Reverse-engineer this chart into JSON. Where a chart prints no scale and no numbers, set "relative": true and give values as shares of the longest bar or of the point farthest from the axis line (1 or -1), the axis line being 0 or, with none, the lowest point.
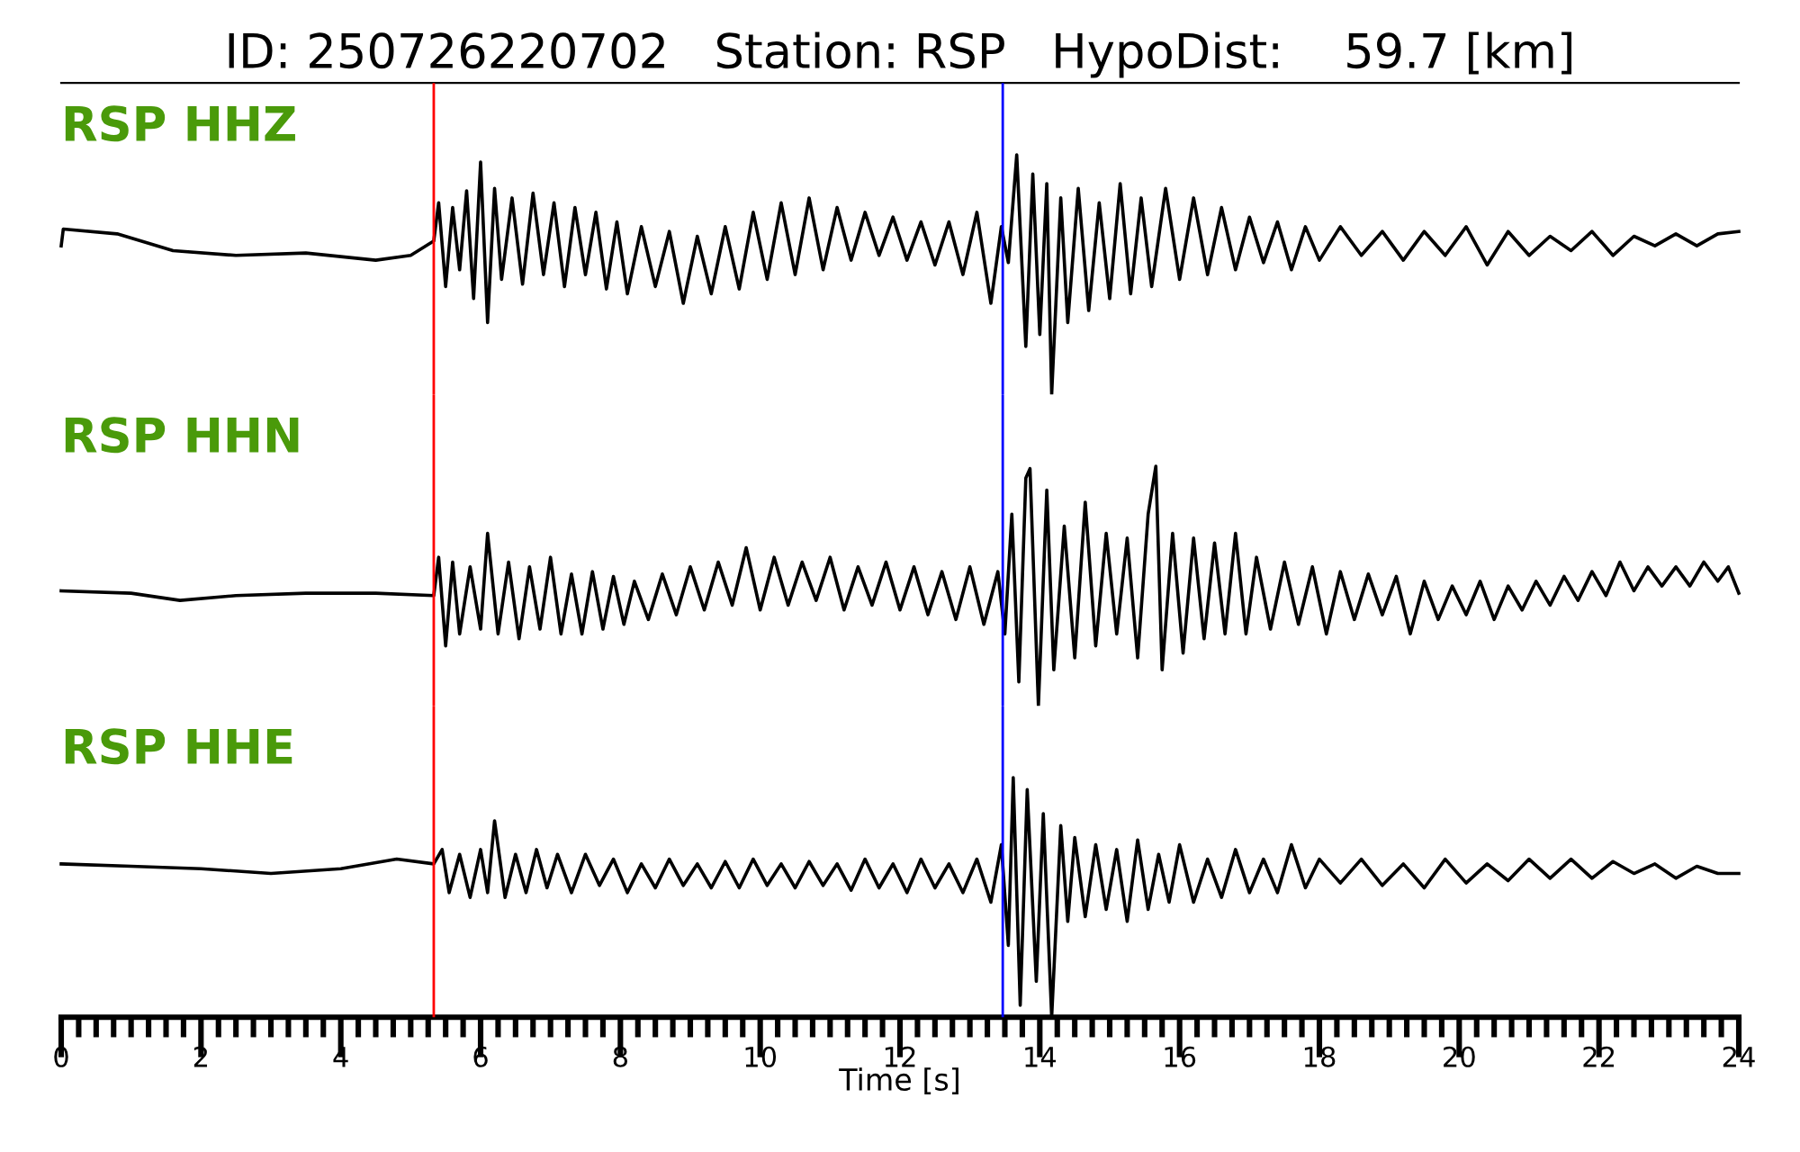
{
  "chart_data": [
    {
      "type": "line",
      "title": "ID: 250726220702   Station: RSP   HypoDist:    59.7 [km]",
      "annotations": [
        "RSP HHZ"
      ],
      "relative": true,
      "tick_labels": false,
      "xlim": [
        0,
        24
      ],
      "x": [
        0,
        0.03,
        0.8,
        1.6,
        2.5,
        3.5,
        4.5,
        5.0,
        5.33,
        5.4,
        5.5,
        5.6,
        5.7,
        5.8,
        5.9,
        6.0,
        6.1,
        6.2,
        6.3,
        6.45,
        6.6,
        6.75,
        6.9,
        7.05,
        7.2,
        7.35,
        7.5,
        7.65,
        7.8,
        7.95,
        8.1,
        8.3,
        8.5,
        8.7,
        8.9,
        9.1,
        9.3,
        9.5,
        9.7,
        9.9,
        10.1,
        10.3,
        10.5,
        10.7,
        10.9,
        11.1,
        11.3,
        11.5,
        11.7,
        11.9,
        12.1,
        12.3,
        12.5,
        12.7,
        12.9,
        13.1,
        13.3,
        13.45,
        13.55,
        13.67,
        13.8,
        13.9,
        14.0,
        14.1,
        14.17,
        14.3,
        14.4,
        14.55,
        14.7,
        14.85,
        15.0,
        15.15,
        15.3,
        15.45,
        15.6,
        15.8,
        16.0,
        16.2,
        16.4,
        16.6,
        16.8,
        17.0,
        17.2,
        17.4,
        17.6,
        17.8,
        18.0,
        18.3,
        18.6,
        18.9,
        19.2,
        19.5,
        19.8,
        20.1,
        20.4,
        20.7,
        21.0,
        21.3,
        21.6,
        21.9,
        22.2,
        22.5,
        22.8,
        23.1,
        23.4,
        23.7,
        24.0
      ],
      "series": [
        {
          "color": "#000000",
          "values": [
            0.62,
            0.69,
            0.67,
            0.6,
            0.58,
            0.59,
            0.56,
            0.58,
            0.64,
            0.8,
            0.45,
            0.78,
            0.52,
            0.85,
            0.4,
            0.97,
            0.3,
            0.86,
            0.48,
            0.82,
            0.46,
            0.84,
            0.5,
            0.8,
            0.45,
            0.78,
            0.5,
            0.76,
            0.44,
            0.72,
            0.42,
            0.7,
            0.45,
            0.68,
            0.38,
            0.66,
            0.42,
            0.7,
            0.44,
            0.76,
            0.48,
            0.8,
            0.5,
            0.82,
            0.52,
            0.78,
            0.56,
            0.76,
            0.58,
            0.74,
            0.56,
            0.72,
            0.54,
            0.72,
            0.5,
            0.76,
            0.38,
            0.7,
            0.55,
            1.0,
            0.2,
            0.92,
            0.25,
            0.88,
            0.0,
            0.82,
            0.3,
            0.86,
            0.35,
            0.8,
            0.4,
            0.88,
            0.42,
            0.82,
            0.45,
            0.86,
            0.48,
            0.82,
            0.5,
            0.78,
            0.52,
            0.74,
            0.55,
            0.72,
            0.52,
            0.7,
            0.56,
            0.7,
            0.58,
            0.68,
            0.56,
            0.68,
            0.58,
            0.7,
            0.54,
            0.68,
            0.58,
            0.66,
            0.6,
            0.68,
            0.58,
            0.66,
            0.62,
            0.67,
            0.62,
            0.67,
            0.68
          ]
        }
      ],
      "ref_lines": [
        {
          "axis": "x",
          "value": 5.33,
          "color": "#ff0000"
        },
        {
          "axis": "x",
          "value": 13.47,
          "color": "#0000ff"
        }
      ]
    },
    {
      "type": "line",
      "annotations": [
        "RSP HHN"
      ],
      "relative": true,
      "tick_labels": false,
      "xlim": [
        0,
        24
      ],
      "x": [
        0,
        1,
        1.7,
        2.5,
        3.5,
        4.5,
        5.33,
        5.4,
        5.5,
        5.6,
        5.7,
        5.85,
        6.0,
        6.1,
        6.25,
        6.4,
        6.55,
        6.7,
        6.85,
        7.0,
        7.15,
        7.3,
        7.45,
        7.6,
        7.75,
        7.9,
        8.05,
        8.2,
        8.4,
        8.6,
        8.8,
        9.0,
        9.2,
        9.4,
        9.6,
        9.8,
        10.0,
        10.2,
        10.4,
        10.6,
        10.8,
        11.0,
        11.2,
        11.4,
        11.6,
        11.8,
        12.0,
        12.2,
        12.4,
        12.6,
        12.8,
        13.0,
        13.2,
        13.4,
        13.5,
        13.6,
        13.7,
        13.8,
        13.86,
        13.98,
        14.1,
        14.2,
        14.35,
        14.5,
        14.65,
        14.8,
        14.95,
        15.1,
        15.25,
        15.4,
        15.55,
        15.66,
        15.75,
        15.9,
        16.05,
        16.2,
        16.35,
        16.5,
        16.65,
        16.8,
        16.95,
        17.1,
        17.3,
        17.5,
        17.7,
        17.9,
        18.1,
        18.3,
        18.5,
        18.7,
        18.9,
        19.1,
        19.3,
        19.5,
        19.7,
        19.9,
        20.1,
        20.3,
        20.5,
        20.7,
        20.9,
        21.1,
        21.3,
        21.5,
        21.7,
        21.9,
        22.1,
        22.3,
        22.5,
        22.7,
        22.9,
        23.1,
        23.3,
        23.5,
        23.7,
        23.85,
        24.0
      ],
      "series": [
        {
          "color": "#000000",
          "values": [
            0.48,
            0.47,
            0.44,
            0.46,
            0.47,
            0.47,
            0.46,
            0.62,
            0.25,
            0.6,
            0.3,
            0.58,
            0.32,
            0.72,
            0.3,
            0.6,
            0.28,
            0.58,
            0.32,
            0.62,
            0.3,
            0.55,
            0.3,
            0.56,
            0.32,
            0.54,
            0.34,
            0.52,
            0.36,
            0.55,
            0.38,
            0.58,
            0.4,
            0.6,
            0.42,
            0.66,
            0.4,
            0.62,
            0.42,
            0.6,
            0.44,
            0.62,
            0.4,
            0.58,
            0.42,
            0.6,
            0.4,
            0.58,
            0.38,
            0.56,
            0.36,
            0.58,
            0.34,
            0.56,
            0.3,
            0.8,
            0.1,
            0.95,
            0.99,
            0.0,
            0.9,
            0.15,
            0.75,
            0.2,
            0.85,
            0.25,
            0.72,
            0.3,
            0.7,
            0.2,
            0.8,
            1.0,
            0.15,
            0.72,
            0.22,
            0.7,
            0.28,
            0.68,
            0.3,
            0.72,
            0.3,
            0.62,
            0.32,
            0.6,
            0.34,
            0.58,
            0.3,
            0.56,
            0.36,
            0.55,
            0.38,
            0.54,
            0.3,
            0.52,
            0.36,
            0.5,
            0.38,
            0.52,
            0.36,
            0.5,
            0.4,
            0.52,
            0.42,
            0.54,
            0.44,
            0.56,
            0.46,
            0.6,
            0.48,
            0.58,
            0.5,
            0.58,
            0.5,
            0.6,
            0.52,
            0.58,
            0.47
          ]
        }
      ],
      "ref_lines": [
        {
          "axis": "x",
          "value": 5.33,
          "color": "#ff0000"
        },
        {
          "axis": "x",
          "value": 13.47,
          "color": "#0000ff"
        }
      ]
    },
    {
      "type": "line",
      "annotations": [
        "RSP HHE"
      ],
      "relative": true,
      "tick_labels": "x",
      "xlabel": "Time [s]",
      "xlim": [
        0,
        24
      ],
      "xticks": [
        0,
        {
          "value": 0.25,
          "label": null
        },
        {
          "value": 0.5,
          "label": null
        },
        {
          "value": 0.75,
          "label": null
        },
        {
          "value": 1,
          "label": null
        },
        {
          "value": 1.25,
          "label": null
        },
        {
          "value": 1.5,
          "label": null
        },
        {
          "value": 1.75,
          "label": null
        },
        2,
        {
          "value": 2.25,
          "label": null
        },
        {
          "value": 2.5,
          "label": null
        },
        {
          "value": 2.75,
          "label": null
        },
        {
          "value": 3,
          "label": null
        },
        {
          "value": 3.25,
          "label": null
        },
        {
          "value": 3.5,
          "label": null
        },
        {
          "value": 3.75,
          "label": null
        },
        4,
        {
          "value": 4.25,
          "label": null
        },
        {
          "value": 4.5,
          "label": null
        },
        {
          "value": 4.75,
          "label": null
        },
        {
          "value": 5,
          "label": null
        },
        {
          "value": 5.25,
          "label": null
        },
        {
          "value": 5.5,
          "label": null
        },
        {
          "value": 5.75,
          "label": null
        },
        6,
        {
          "value": 6.25,
          "label": null
        },
        {
          "value": 6.5,
          "label": null
        },
        {
          "value": 6.75,
          "label": null
        },
        {
          "value": 7,
          "label": null
        },
        {
          "value": 7.25,
          "label": null
        },
        {
          "value": 7.5,
          "label": null
        },
        {
          "value": 7.75,
          "label": null
        },
        8,
        {
          "value": 8.25,
          "label": null
        },
        {
          "value": 8.5,
          "label": null
        },
        {
          "value": 8.75,
          "label": null
        },
        {
          "value": 9,
          "label": null
        },
        {
          "value": 9.25,
          "label": null
        },
        {
          "value": 9.5,
          "label": null
        },
        {
          "value": 9.75,
          "label": null
        },
        10,
        {
          "value": 10.25,
          "label": null
        },
        {
          "value": 10.5,
          "label": null
        },
        {
          "value": 10.75,
          "label": null
        },
        {
          "value": 11,
          "label": null
        },
        {
          "value": 11.25,
          "label": null
        },
        {
          "value": 11.5,
          "label": null
        },
        {
          "value": 11.75,
          "label": null
        },
        12,
        {
          "value": 12.25,
          "label": null
        },
        {
          "value": 12.5,
          "label": null
        },
        {
          "value": 12.75,
          "label": null
        },
        {
          "value": 13,
          "label": null
        },
        {
          "value": 13.25,
          "label": null
        },
        {
          "value": 13.5,
          "label": null
        },
        {
          "value": 13.75,
          "label": null
        },
        14,
        {
          "value": 14.25,
          "label": null
        },
        {
          "value": 14.5,
          "label": null
        },
        {
          "value": 14.75,
          "label": null
        },
        {
          "value": 15,
          "label": null
        },
        {
          "value": 15.25,
          "label": null
        },
        {
          "value": 15.5,
          "label": null
        },
        {
          "value": 15.75,
          "label": null
        },
        16,
        {
          "value": 16.25,
          "label": null
        },
        {
          "value": 16.5,
          "label": null
        },
        {
          "value": 16.75,
          "label": null
        },
        {
          "value": 17,
          "label": null
        },
        {
          "value": 17.25,
          "label": null
        },
        {
          "value": 17.5,
          "label": null
        },
        {
          "value": 17.75,
          "label": null
        },
        18,
        {
          "value": 18.25,
          "label": null
        },
        {
          "value": 18.5,
          "label": null
        },
        {
          "value": 18.75,
          "label": null
        },
        {
          "value": 19,
          "label": null
        },
        {
          "value": 19.25,
          "label": null
        },
        {
          "value": 19.5,
          "label": null
        },
        {
          "value": 19.75,
          "label": null
        },
        20,
        {
          "value": 20.25,
          "label": null
        },
        {
          "value": 20.5,
          "label": null
        },
        {
          "value": 20.75,
          "label": null
        },
        {
          "value": 21,
          "label": null
        },
        {
          "value": 21.25,
          "label": null
        },
        {
          "value": 21.5,
          "label": null
        },
        {
          "value": 21.75,
          "label": null
        },
        22,
        {
          "value": 22.25,
          "label": null
        },
        {
          "value": 22.5,
          "label": null
        },
        {
          "value": 22.75,
          "label": null
        },
        {
          "value": 23,
          "label": null
        },
        {
          "value": 23.25,
          "label": null
        },
        {
          "value": 23.5,
          "label": null
        },
        {
          "value": 23.75,
          "label": null
        },
        24
      ],
      "x": [
        0,
        1,
        2,
        3,
        4,
        4.8,
        5.33,
        5.45,
        5.55,
        5.7,
        5.85,
        6.0,
        6.1,
        6.2,
        6.35,
        6.5,
        6.65,
        6.8,
        6.95,
        7.1,
        7.3,
        7.5,
        7.7,
        7.9,
        8.1,
        8.3,
        8.5,
        8.7,
        8.9,
        9.1,
        9.3,
        9.5,
        9.7,
        9.9,
        10.1,
        10.3,
        10.5,
        10.7,
        10.9,
        11.1,
        11.3,
        11.5,
        11.7,
        11.9,
        12.1,
        12.3,
        12.5,
        12.7,
        12.9,
        13.1,
        13.3,
        13.45,
        13.55,
        13.62,
        13.72,
        13.82,
        13.95,
        14.05,
        14.17,
        14.3,
        14.4,
        14.5,
        14.65,
        14.8,
        14.95,
        15.1,
        15.25,
        15.4,
        15.55,
        15.7,
        15.85,
        16.0,
        16.2,
        16.4,
        16.6,
        16.8,
        17.0,
        17.2,
        17.4,
        17.6,
        17.8,
        18.0,
        18.3,
        18.6,
        18.9,
        19.2,
        19.5,
        19.8,
        20.1,
        20.4,
        20.7,
        21.0,
        21.3,
        21.6,
        21.9,
        22.2,
        22.5,
        22.8,
        23.1,
        23.4,
        23.7,
        24.0
      ],
      "series": [
        {
          "color": "#000000",
          "values": [
            0.64,
            0.63,
            0.62,
            0.6,
            0.62,
            0.66,
            0.64,
            0.7,
            0.52,
            0.68,
            0.5,
            0.7,
            0.52,
            0.82,
            0.5,
            0.68,
            0.52,
            0.7,
            0.54,
            0.68,
            0.52,
            0.68,
            0.55,
            0.66,
            0.52,
            0.64,
            0.54,
            0.66,
            0.55,
            0.64,
            0.54,
            0.65,
            0.54,
            0.66,
            0.55,
            0.64,
            0.54,
            0.65,
            0.55,
            0.64,
            0.53,
            0.66,
            0.54,
            0.64,
            0.52,
            0.66,
            0.54,
            0.64,
            0.52,
            0.66,
            0.48,
            0.72,
            0.3,
            1.0,
            0.05,
            0.95,
            0.15,
            0.85,
            0.0,
            0.8,
            0.4,
            0.75,
            0.42,
            0.72,
            0.45,
            0.7,
            0.4,
            0.74,
            0.45,
            0.68,
            0.48,
            0.72,
            0.48,
            0.66,
            0.5,
            0.7,
            0.52,
            0.66,
            0.52,
            0.72,
            0.54,
            0.66,
            0.56,
            0.66,
            0.55,
            0.64,
            0.54,
            0.66,
            0.56,
            0.64,
            0.57,
            0.66,
            0.58,
            0.66,
            0.58,
            0.65,
            0.6,
            0.64,
            0.58,
            0.63,
            0.6,
            0.6
          ]
        }
      ],
      "ref_lines": [
        {
          "axis": "x",
          "value": 5.33,
          "color": "#ff0000"
        },
        {
          "axis": "x",
          "value": 13.47,
          "color": "#0000ff"
        }
      ]
    }
  ]
}
